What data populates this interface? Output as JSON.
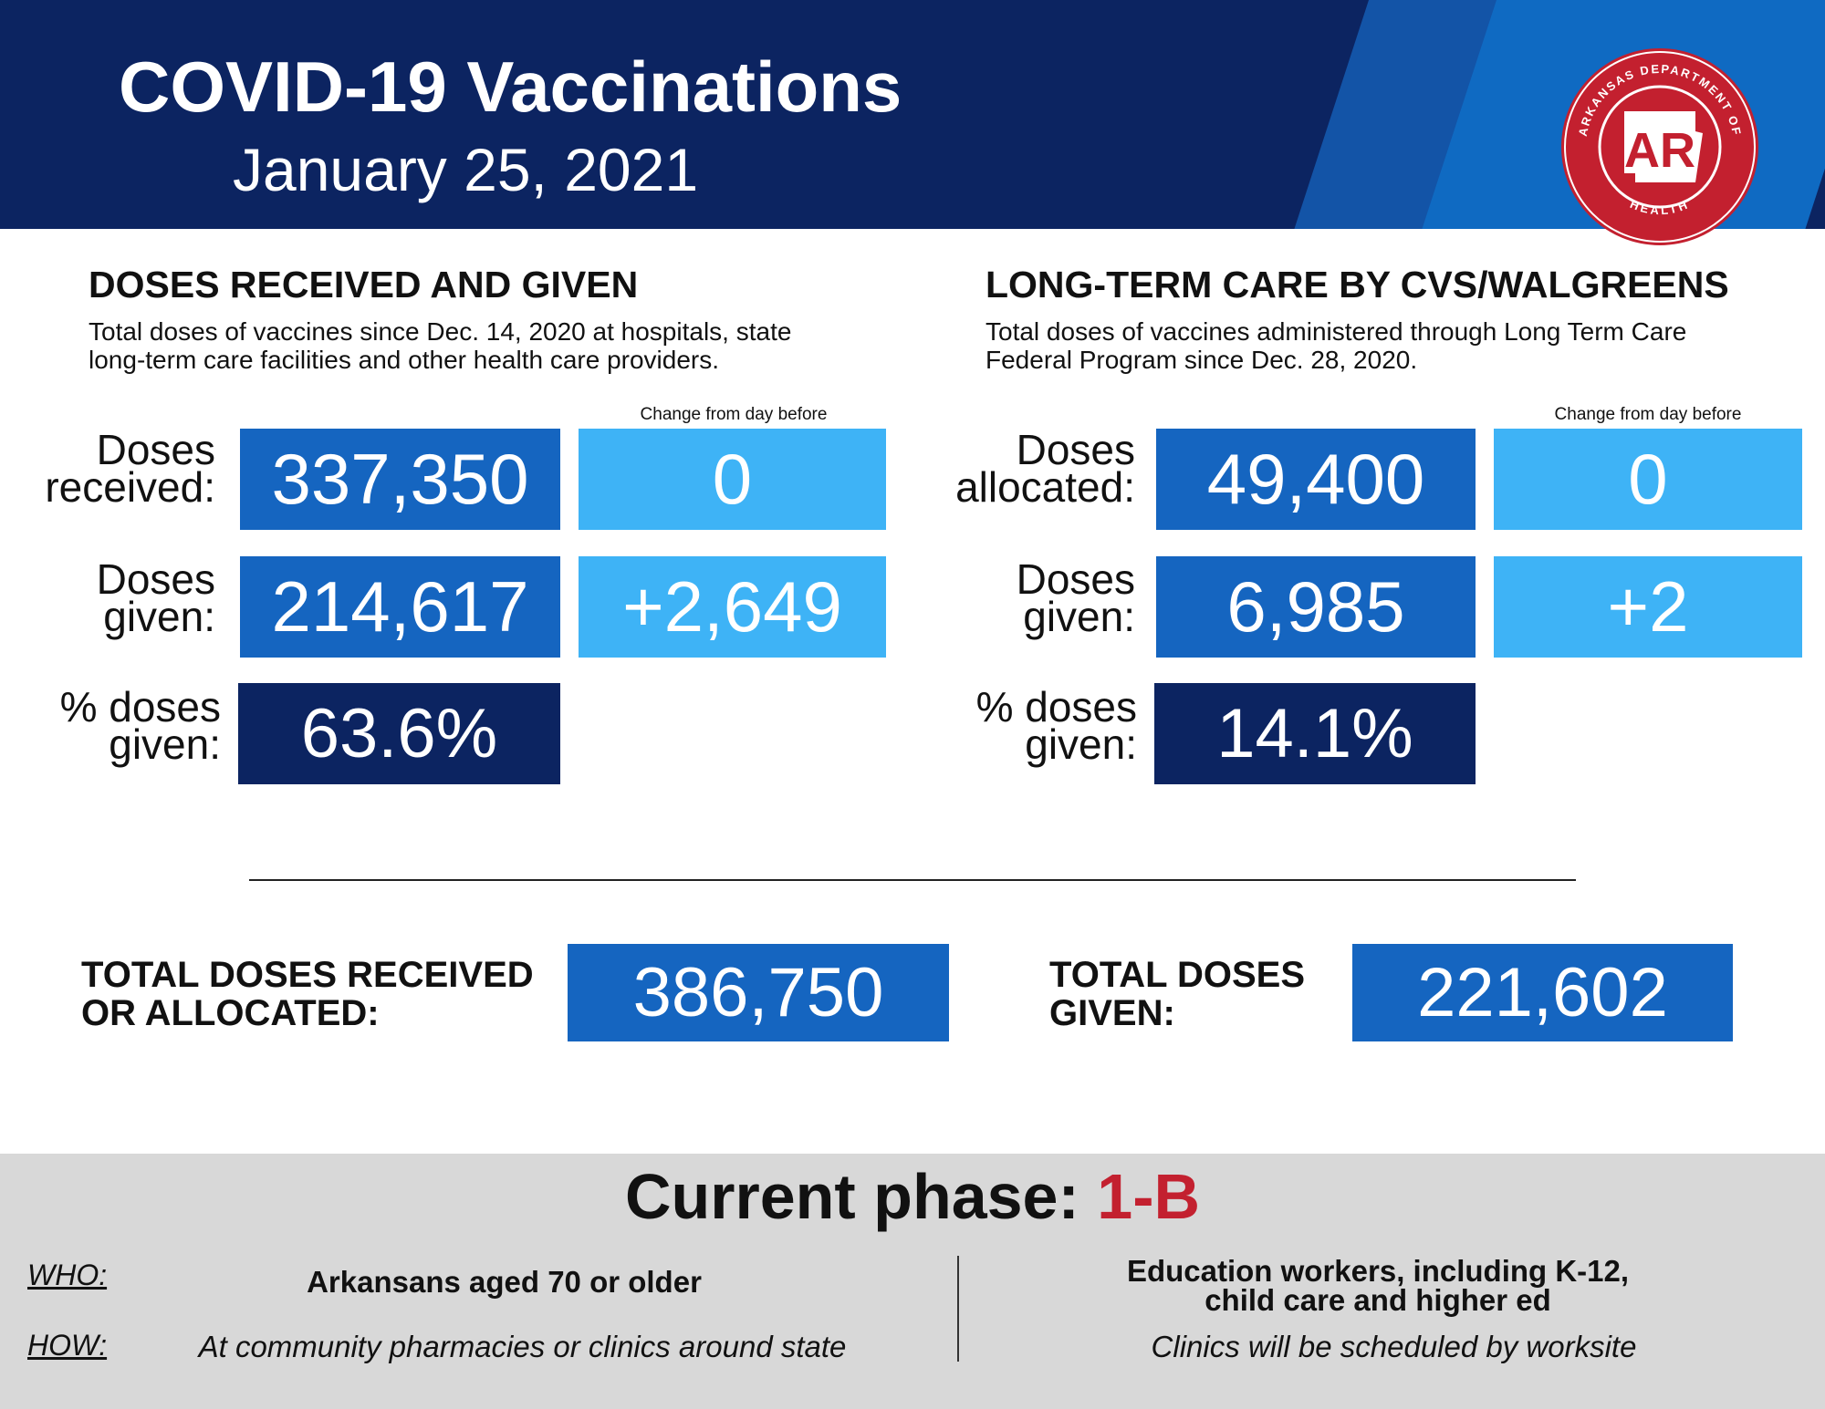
{
  "header": {
    "title": "COVID-19 Vaccinations",
    "date": "January 25, 2021",
    "seal": {
      "ring_text_top": "ARKANSAS DEPARTMENT OF",
      "ring_text_bottom": "HEALTH",
      "center": "AR",
      "color": "#c3202f"
    }
  },
  "left": {
    "title": "DOSES RECEIVED AND GIVEN",
    "desc_line1": "Total doses of vaccines since Dec. 14, 2020 at hospitals, state",
    "desc_line2": "long-term care facilities and other health care providers.",
    "change_label": "Change from day before",
    "rows": [
      {
        "label1": "Doses",
        "label2": "received:",
        "value": "337,350",
        "change": "0"
      },
      {
        "label1": "Doses",
        "label2": "given:",
        "value": "214,617",
        "change": "+2,649"
      },
      {
        "label1": "% doses",
        "label2": "given:",
        "value": "63.6%"
      }
    ]
  },
  "right": {
    "title": "LONG-TERM CARE BY CVS/WALGREENS",
    "desc_line1": "Total doses of vaccines administered through Long Term Care",
    "desc_line2": "Federal Program since Dec. 28, 2020.",
    "change_label": "Change from day before",
    "rows": [
      {
        "label1": "Doses",
        "label2": "allocated:",
        "value": "49,400",
        "change": "0"
      },
      {
        "label1": "Doses",
        "label2": "given:",
        "value": "6,985",
        "change": "+2"
      },
      {
        "label1": "% doses",
        "label2": "given:",
        "value": "14.1%"
      }
    ]
  },
  "totals": {
    "received_label1": "TOTAL DOSES RECEIVED",
    "received_label2": "OR ALLOCATED:",
    "received_value": "386,750",
    "given_label1": "TOTAL DOSES",
    "given_label2": "GIVEN:",
    "given_value": "221,602"
  },
  "phase": {
    "label": "Current phase:",
    "value": "1-B",
    "who_label": "WHO:",
    "how_label": "HOW:",
    "who_left": "Arkansans aged 70 or older",
    "how_left": "At community pharmacies or clinics around state",
    "who_right_line1": "Education workers, including K-12,",
    "who_right_line2": "child care and higher ed",
    "how_right": "Clinics will be scheduled by worksite"
  },
  "colors": {
    "navy": "#0c2461",
    "blue": "#1565c0",
    "light_blue": "#3eb3f6",
    "red": "#c3202f"
  }
}
